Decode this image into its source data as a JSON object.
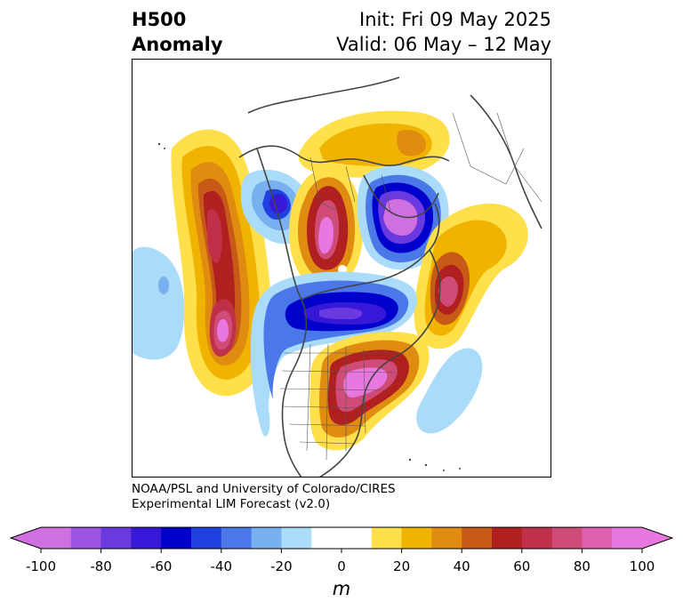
{
  "title": {
    "left_line1": "H500",
    "left_line2": "Anomaly",
    "right_line1": "Init: Fri 09 May 2025",
    "right_line2": "Valid: 06 May – 12 May"
  },
  "credit": {
    "line1": "NOAA/PSL and University of Colorado/CIRES",
    "line2": "Experimental LIM Forecast (v2.0)"
  },
  "colorbar": {
    "unit": "m",
    "ticks": [
      "-100",
      "-80",
      "-60",
      "-40",
      "-20",
      "0",
      "20",
      "40",
      "60",
      "80",
      "100"
    ],
    "colors": [
      "#d070e0",
      "#9a54e0",
      "#6a3ae0",
      "#3818d8",
      "#0000cc",
      "#2040e0",
      "#4a78e8",
      "#78b0f0",
      "#aadcfa",
      "#ffffff",
      "#ffffff",
      "#ffe04a",
      "#f0b400",
      "#e08c10",
      "#c85a18",
      "#b02020",
      "#c03048",
      "#d04c78",
      "#e060b0",
      "#e878e0"
    ],
    "extend_min_color": "#d070e0",
    "extend_max_color": "#e878e0"
  },
  "map": {
    "projection": "polar-stereographic",
    "region": "North Pacific / North America",
    "anomaly_centers": [
      {
        "label": "positive",
        "region": "central North Pacific",
        "approx_m": 100
      },
      {
        "label": "positive",
        "region": "Alaska / Bering",
        "approx_m": 100
      },
      {
        "label": "negative",
        "region": "Hudson Bay / Canada",
        "approx_m": -100
      },
      {
        "label": "negative",
        "region": "northern US / Canada",
        "approx_m": -60
      },
      {
        "label": "positive",
        "region": "eastern US / Great Lakes",
        "approx_m": 100
      },
      {
        "label": "positive",
        "region": "North Atlantic",
        "approx_m": 80
      }
    ]
  }
}
